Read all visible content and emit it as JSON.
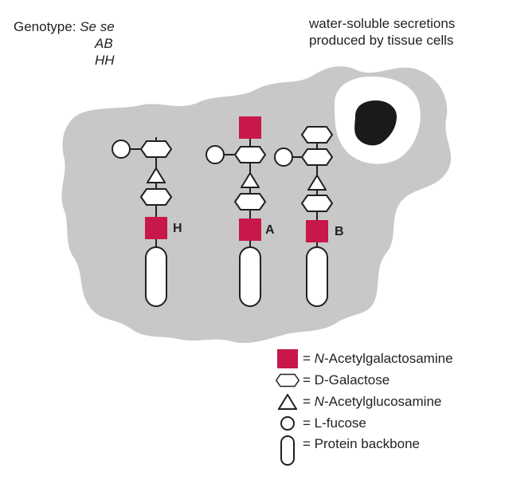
{
  "genotype": {
    "label": "Genotype:",
    "line1": "Se se",
    "line2": "AB",
    "line3": "HH"
  },
  "note": {
    "line1": "water-soluble secretions",
    "line2": "produced by tissue cells"
  },
  "chains": [
    {
      "label": "H"
    },
    {
      "label": "A"
    },
    {
      "label": "B"
    }
  ],
  "legend": {
    "equals": "=",
    "galnac_prefix": "N",
    "galnac_rest": "-Acetylgalactosamine",
    "gal_prefix": "D",
    "gal_rest": "-Galactose",
    "glcnac_prefix": "N",
    "glcnac_rest": "-Acetylglucosamine",
    "fuc_prefix": "L",
    "fuc_rest": "-fucose",
    "protein": "Protein backbone"
  },
  "colors": {
    "galnac": "#c8174a",
    "cell": "#c8c8c8",
    "nucleus": "#1a1a1a",
    "outline": "#231f20"
  }
}
